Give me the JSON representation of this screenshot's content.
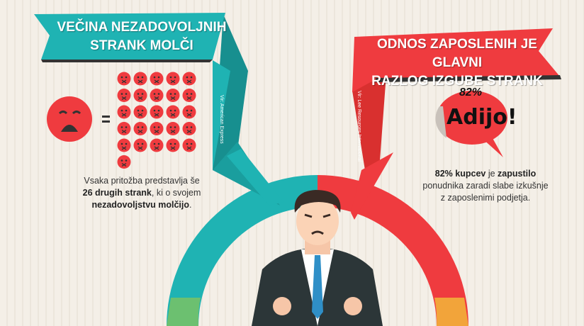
{
  "left_panel": {
    "title_line1": "VEČINA NEZADOVOLJNIH",
    "title_line2": "STRANK MOLČI",
    "source": "Vir: American Express",
    "silent_faces_count": 26,
    "caption": {
      "line1": "Vsaka pritožba predstavlja še",
      "bold1": "26 drugih strank",
      "rest1": ", ki o svojem",
      "bold2": "nezadovoljstvu molčijo",
      "end": "."
    },
    "color": "#1fb3b3"
  },
  "right_panel": {
    "title_line1": "ODNOS ZAPOSLENIH JE GLAVNI",
    "title_line2": "RAZLOG IZGUBE STRANK",
    "source": "Vir: Lee Resources International",
    "bubble_percent": "82%",
    "bubble_text": "Adijo!",
    "caption": {
      "bold1": "82% kupcev",
      "mid1": " je ",
      "bold2": "zapustilo",
      "line2": "ponudnika zaradi slabe izkušnje",
      "line3": "z zaposlenimi podjetja."
    },
    "color": "#ef3b3f"
  },
  "donut_colors": {
    "left": "#1fb3b3",
    "right": "#ef3b3f",
    "bottom_left": "#6cc070",
    "bottom_right": "#f2a43a"
  }
}
